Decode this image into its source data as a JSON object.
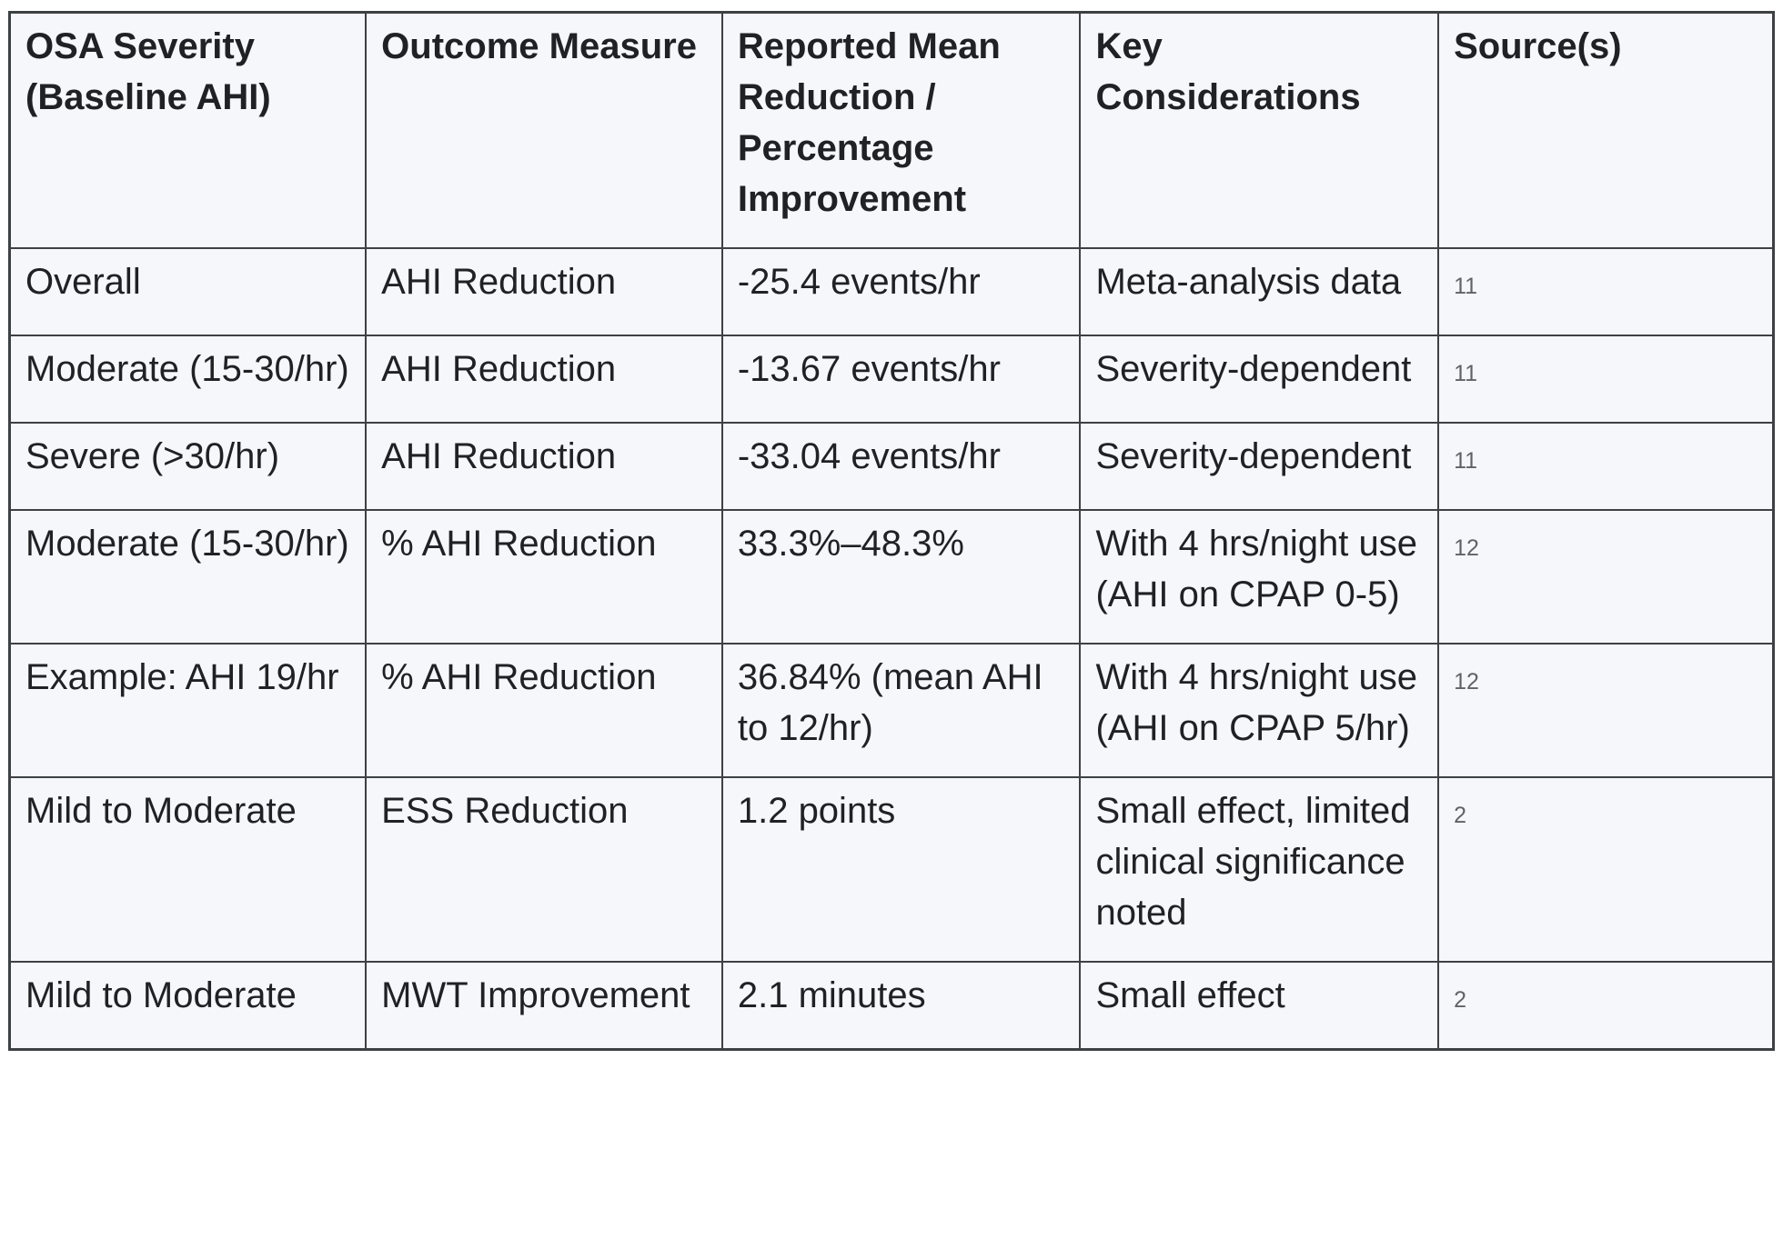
{
  "colors": {
    "page_bg": "#ffffff",
    "cell_bg": "#f5f7fa",
    "border": "#3d4144",
    "text": "#1f2124",
    "source_text": "#5f6368"
  },
  "table": {
    "columns": [
      {
        "key": "severity",
        "label": "OSA Severity (Baseline AHI)"
      },
      {
        "key": "measure",
        "label": "Outcome Measure"
      },
      {
        "key": "reduction",
        "label": "Reported Mean Reduction / Percentage Improvement"
      },
      {
        "key": "considerations",
        "label": "Key Considerations"
      },
      {
        "key": "source",
        "label": "Source(s)"
      }
    ],
    "rows": [
      {
        "severity": "Overall",
        "measure": "AHI Reduction",
        "reduction": "-25.4 events/hr",
        "considerations": "Meta-analysis data",
        "source": "11"
      },
      {
        "severity": "Moderate (15-30/hr)",
        "measure": "AHI Reduction",
        "reduction": "-13.67 events/hr",
        "considerations": "Severity-dependent",
        "source": "11"
      },
      {
        "severity": "Severe (>30/hr)",
        "measure": "AHI Reduction",
        "reduction": "-33.04 events/hr",
        "considerations": "Severity-dependent",
        "source": "11"
      },
      {
        "severity": "Moderate (15-30/hr)",
        "measure": "% AHI Reduction",
        "reduction": "33.3%–48.3%",
        "considerations": "With 4 hrs/night use (AHI on CPAP 0-5)",
        "source": "12"
      },
      {
        "severity": "Example: AHI 19/hr",
        "measure": "% AHI Reduction",
        "reduction": "36.84% (mean AHI to 12/hr)",
        "considerations": "With 4 hrs/night use (AHI on CPAP 5/hr)",
        "source": "12"
      },
      {
        "severity": "Mild to Moderate",
        "measure": "ESS Reduction",
        "reduction": "1.2 points",
        "considerations": "Small effect, limited clinical significance noted",
        "source": "2"
      },
      {
        "severity": "Mild to Moderate",
        "measure": "MWT Improvement",
        "reduction": "2.1 minutes",
        "considerations": "Small effect",
        "source": "2"
      }
    ]
  }
}
